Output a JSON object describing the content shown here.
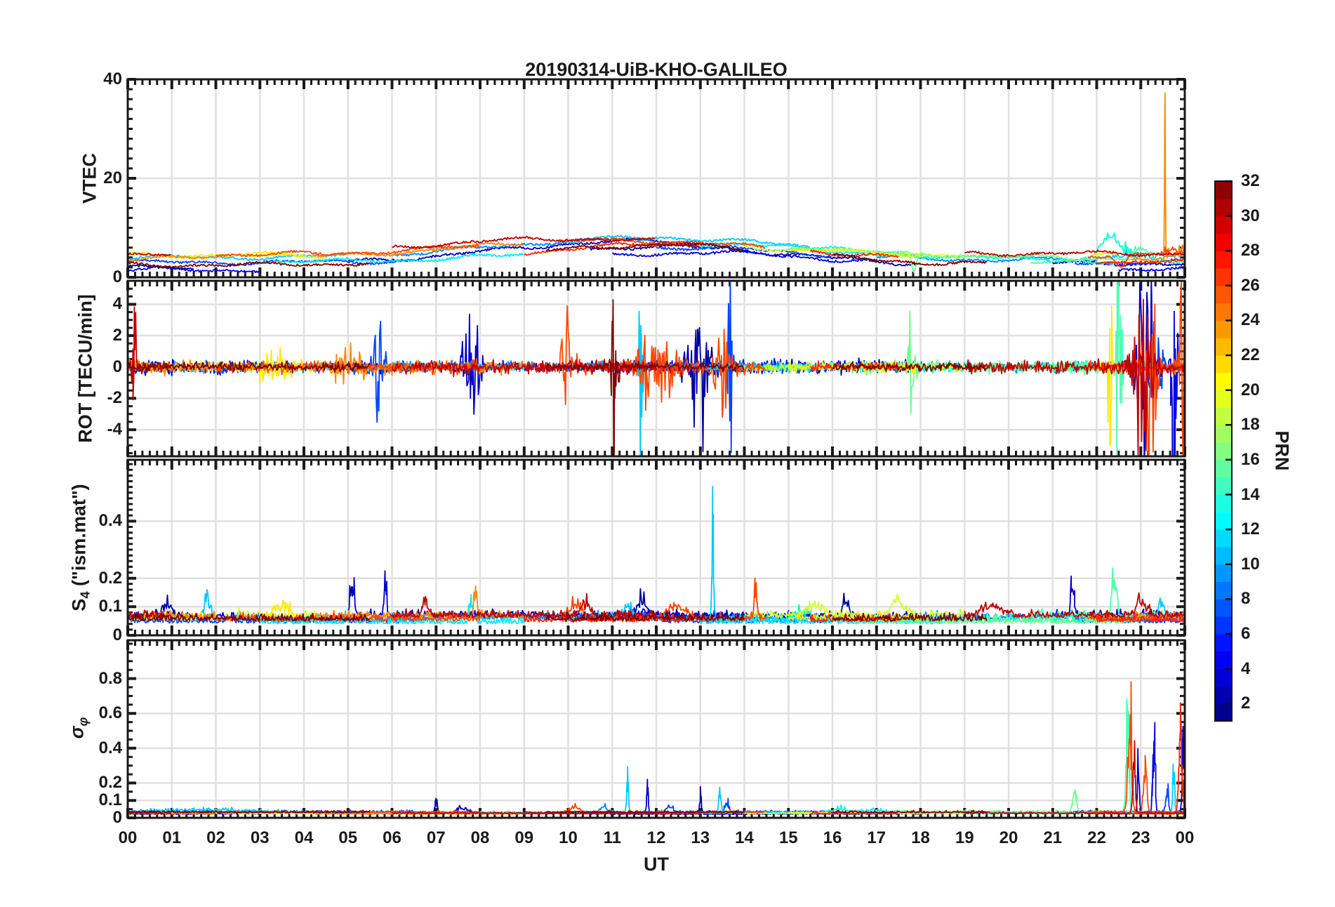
{
  "chart_data": {
    "type": "line",
    "title": "20190314-UiB-KHO-GALILEO",
    "xlabel": "UT",
    "x_range_hours": [
      0,
      24
    ],
    "x_tick_labels": [
      "00",
      "01",
      "02",
      "03",
      "04",
      "05",
      "06",
      "07",
      "08",
      "09",
      "10",
      "11",
      "12",
      "13",
      "14",
      "15",
      "16",
      "17",
      "18",
      "19",
      "20",
      "21",
      "22",
      "23",
      "00"
    ],
    "x_minor_step_hours": 0.166667,
    "grid": true,
    "axis_color": "#1a1a1a",
    "grid_color": "#e0e0e0",
    "colorbar": {
      "label": "PRN",
      "min": 1,
      "max": 32,
      "ticks": [
        2,
        4,
        6,
        8,
        10,
        12,
        14,
        16,
        18,
        20,
        22,
        24,
        26,
        28,
        30,
        32
      ],
      "colormap": "jet"
    },
    "panels": [
      {
        "id": "vtec",
        "ylabel": "VTEC",
        "kind": "vtec",
        "ylim": [
          0,
          40
        ],
        "yticks": [
          0,
          20,
          40
        ],
        "ytick_labels": [
          "0",
          "20",
          "40"
        ],
        "minor_step": 2,
        "events": [
          {
            "prn": 24,
            "t": 23.55,
            "amp": 33,
            "w": 0.012
          },
          {
            "prn": 14,
            "t": 22.3,
            "amp": 4,
            "w": 0.3
          },
          {
            "prn": 15,
            "t": 23.0,
            "amp": 2.5,
            "w": 0.3
          },
          {
            "prn": 16,
            "t": 17.85,
            "amp": -4,
            "w": 0.07
          },
          {
            "prn": 26,
            "t": 22.55,
            "amp": -2.5,
            "w": 0.15
          },
          {
            "prn": 14,
            "t": 22.5,
            "amp": 1.2,
            "w": 0.6,
            "noise": 1
          },
          {
            "prn": 15,
            "t": 23.2,
            "amp": 1.0,
            "w": 0.5,
            "noise": 1
          },
          {
            "prn": 11,
            "t": 23.0,
            "amp": 0.8,
            "w": 0.8,
            "noise": 1
          },
          {
            "prn": 24,
            "t": 23.8,
            "amp": 1.5,
            "w": 0.3,
            "noise": 1
          },
          {
            "prn": 26,
            "t": 23.8,
            "amp": 1.2,
            "w": 0.4,
            "noise": 1
          }
        ]
      },
      {
        "id": "rot",
        "ylabel": "ROT [TECU/min]",
        "kind": "noise",
        "ylim": [
          -5.7,
          5.5
        ],
        "yticks": [
          -4,
          -2,
          0,
          2,
          4
        ],
        "ytick_labels": [
          "-4",
          "-2",
          "0",
          "2",
          "4"
        ],
        "minor_step": 0.5,
        "base_sigma": 0.2,
        "events": [
          {
            "prn": 30,
            "t": 0.15,
            "amp": 2.2,
            "w": 0.06
          },
          {
            "prn": 21,
            "t": 3.3,
            "amp": 0.9,
            "w": 0.35
          },
          {
            "prn": 24,
            "t": 5.0,
            "amp": 0.8,
            "w": 0.3
          },
          {
            "prn": 7,
            "t": 5.7,
            "amp": 2.2,
            "w": 0.15
          },
          {
            "prn": 7,
            "t": 7.35,
            "amp": 2.6,
            "w": 0.3
          },
          {
            "prn": 3,
            "t": 7.8,
            "amp": 2.2,
            "w": 0.18
          },
          {
            "prn": 26,
            "t": 9.95,
            "amp": 1.8,
            "w": 0.2
          },
          {
            "prn": 32,
            "t": 11.05,
            "amp": 5.0,
            "w": 0.07
          },
          {
            "prn": 11,
            "t": 11.65,
            "amp": 5.5,
            "w": 0.04
          },
          {
            "prn": 26,
            "t": 12.0,
            "amp": 2.0,
            "w": 0.4
          },
          {
            "prn": 2,
            "t": 12.95,
            "amp": 2.8,
            "w": 0.25
          },
          {
            "prn": 26,
            "t": 13.5,
            "amp": 2.6,
            "w": 0.18
          },
          {
            "prn": 7,
            "t": 13.67,
            "amp": 4.2,
            "w": 0.05
          },
          {
            "prn": 30,
            "t": 13.75,
            "amp": 4.2,
            "w": 0.12
          },
          {
            "prn": 16,
            "t": 17.8,
            "amp": 2.0,
            "w": 0.08
          },
          {
            "prn": 21,
            "t": 22.3,
            "amp": 5.5,
            "w": 0.04
          },
          {
            "prn": 15,
            "t": 22.5,
            "amp": 5.0,
            "w": 0.07
          },
          {
            "prn": 30,
            "t": 23.05,
            "amp": 5.0,
            "w": 0.2
          },
          {
            "prn": 26,
            "t": 23.2,
            "amp": 4.5,
            "w": 0.15
          },
          {
            "prn": 3,
            "t": 23.1,
            "amp": 4.0,
            "w": 0.2
          },
          {
            "prn": 7,
            "t": 23.35,
            "amp": 3.5,
            "w": 0.12
          },
          {
            "prn": 4,
            "t": 23.75,
            "amp": 5.0,
            "w": 0.07
          },
          {
            "prn": 26,
            "t": 23.95,
            "amp": 3.5,
            "w": 0.1
          }
        ]
      },
      {
        "id": "s4",
        "ylabel_parts": {
          "pre": "S",
          "sub": "4",
          "post": " (\"ism.mat\")"
        },
        "kind": "positive",
        "ylim": [
          0,
          0.615
        ],
        "yticks": [
          0,
          0.1,
          0.2,
          0.4
        ],
        "ytick_labels": [
          "0",
          "0.1",
          "0.2",
          "0.4"
        ],
        "minor_step": 0.02,
        "base": 0.05,
        "events": [
          {
            "prn": 2,
            "t": 0.9,
            "amp": 0.1,
            "w": 0.15
          },
          {
            "prn": 11,
            "t": 1.8,
            "amp": 0.16,
            "w": 0.1
          },
          {
            "prn": 30,
            "t": 3.1,
            "amp": 0.12,
            "w": 0.12
          },
          {
            "prn": 21,
            "t": 3.5,
            "amp": 0.09,
            "w": 0.25
          },
          {
            "prn": 3,
            "t": 5.1,
            "amp": 0.2,
            "w": 0.07
          },
          {
            "prn": 3,
            "t": 5.85,
            "amp": 0.27,
            "w": 0.04
          },
          {
            "prn": 30,
            "t": 6.75,
            "amp": 0.14,
            "w": 0.07
          },
          {
            "prn": 24,
            "t": 7.9,
            "amp": 0.2,
            "w": 0.05
          },
          {
            "prn": 12,
            "t": 7.8,
            "amp": 0.16,
            "w": 0.06
          },
          {
            "prn": 21,
            "t": 9.0,
            "amp": 0.06,
            "w": 0.3
          },
          {
            "prn": 26,
            "t": 10.15,
            "amp": 0.11,
            "w": 0.2
          },
          {
            "prn": 30,
            "t": 10.4,
            "amp": 0.09,
            "w": 0.15
          },
          {
            "prn": 11,
            "t": 11.35,
            "amp": 0.12,
            "w": 0.1
          },
          {
            "prn": 2,
            "t": 11.65,
            "amp": 0.11,
            "w": 0.2
          },
          {
            "prn": 26,
            "t": 12.45,
            "amp": 0.09,
            "w": 0.3
          },
          {
            "prn": 11,
            "t": 13.28,
            "amp": 0.56,
            "w": 0.03
          },
          {
            "prn": 26,
            "t": 14.25,
            "amp": 0.24,
            "w": 0.04
          },
          {
            "prn": 14,
            "t": 15.35,
            "amp": 0.06,
            "w": 0.3
          },
          {
            "prn": 19,
            "t": 15.65,
            "amp": 0.07,
            "w": 0.25
          },
          {
            "prn": 2,
            "t": 16.3,
            "amp": 0.14,
            "w": 0.08
          },
          {
            "prn": 19,
            "t": 17.5,
            "amp": 0.12,
            "w": 0.2
          },
          {
            "prn": 30,
            "t": 17.95,
            "amp": 0.11,
            "w": 0.12
          },
          {
            "prn": 30,
            "t": 19.6,
            "amp": 0.08,
            "w": 0.3
          },
          {
            "prn": 3,
            "t": 21.45,
            "amp": 0.27,
            "w": 0.05
          },
          {
            "prn": 15,
            "t": 22.4,
            "amp": 0.26,
            "w": 0.08
          },
          {
            "prn": 30,
            "t": 23.0,
            "amp": 0.09,
            "w": 0.2
          },
          {
            "prn": 11,
            "t": 23.45,
            "amp": 0.12,
            "w": 0.1
          }
        ]
      },
      {
        "id": "sigma_phi",
        "ylabel_parts": {
          "pre": "σ",
          "sub": "φ",
          "post": ""
        },
        "kind": "positive",
        "ylim": [
          0,
          1.02
        ],
        "yticks": [
          0,
          0.1,
          0.2,
          0.4,
          0.6,
          0.8
        ],
        "ytick_labels": [
          "0",
          "0.1",
          "0.2",
          "0.4",
          "0.6",
          "0.8"
        ],
        "minor_step": 0.05,
        "base": 0.024,
        "events": [
          {
            "prn": 11,
            "t": 1.7,
            "amp": 0.035,
            "w": 1.5
          },
          {
            "prn": 3,
            "t": 7.0,
            "amp": 0.14,
            "w": 0.04
          },
          {
            "prn": 3,
            "t": 7.6,
            "amp": 0.07,
            "w": 0.15
          },
          {
            "prn": 26,
            "t": 10.15,
            "amp": 0.07,
            "w": 0.15
          },
          {
            "prn": 9,
            "t": 10.8,
            "amp": 0.09,
            "w": 0.1
          },
          {
            "prn": 11,
            "t": 11.35,
            "amp": 0.4,
            "w": 0.03
          },
          {
            "prn": 3,
            "t": 11.8,
            "amp": 0.33,
            "w": 0.025
          },
          {
            "prn": 7,
            "t": 12.3,
            "amp": 0.07,
            "w": 0.1
          },
          {
            "prn": 2,
            "t": 13.0,
            "amp": 0.21,
            "w": 0.03
          },
          {
            "prn": 11,
            "t": 13.45,
            "amp": 0.23,
            "w": 0.04
          },
          {
            "prn": 7,
            "t": 13.6,
            "amp": 0.11,
            "w": 0.06
          },
          {
            "prn": 14,
            "t": 16.2,
            "amp": 0.05,
            "w": 0.3
          },
          {
            "prn": 12,
            "t": 16.9,
            "amp": 0.04,
            "w": 0.4
          },
          {
            "prn": 16,
            "t": 21.5,
            "amp": 0.24,
            "w": 0.06
          },
          {
            "prn": 15,
            "t": 22.7,
            "amp": 1.0,
            "w": 0.05
          },
          {
            "prn": 26,
            "t": 22.75,
            "amp": 1.0,
            "w": 0.06
          },
          {
            "prn": 30,
            "t": 22.85,
            "amp": 0.6,
            "w": 0.04
          },
          {
            "prn": 3,
            "t": 22.95,
            "amp": 0.55,
            "w": 0.03
          },
          {
            "prn": 26,
            "t": 23.1,
            "amp": 0.65,
            "w": 0.05
          },
          {
            "prn": 4,
            "t": 23.3,
            "amp": 0.8,
            "w": 0.04
          },
          {
            "prn": 7,
            "t": 23.6,
            "amp": 0.3,
            "w": 0.04
          },
          {
            "prn": 11,
            "t": 23.75,
            "amp": 0.45,
            "w": 0.03
          },
          {
            "prn": 27,
            "t": 23.9,
            "amp": 0.9,
            "w": 0.05
          },
          {
            "prn": 4,
            "t": 23.98,
            "amp": 1.0,
            "w": 0.04
          }
        ]
      }
    ],
    "series": [
      {
        "prn": 2,
        "color": "#0000A0",
        "segments": [
          [
            0,
            1.5
          ],
          [
            10.5,
            18
          ]
        ],
        "vtec": {
          "base": 2.2,
          "hump": 4.0,
          "center": 12
        }
      },
      {
        "prn": 3,
        "color": "#0000C1",
        "segments": [
          [
            5,
            13
          ],
          [
            21,
            24
          ]
        ],
        "vtec": {
          "base": 2.8,
          "hump": 4.5,
          "center": 11.5
        }
      },
      {
        "prn": 4,
        "color": "#0000E2",
        "segments": [
          [
            0,
            3
          ],
          [
            11,
            17
          ],
          [
            22.5,
            24
          ]
        ],
        "vtec": {
          "base": 1.5,
          "hump": 3.5,
          "center": 13
        }
      },
      {
        "prn": 7,
        "color": "#0046FF",
        "segments": [
          [
            0,
            6.5
          ],
          [
            12,
            16
          ],
          [
            21.5,
            24
          ]
        ],
        "vtec": {
          "base": 3.0,
          "hump": 3.0,
          "center": 12.5
        }
      },
      {
        "prn": 9,
        "color": "#0088FF",
        "segments": [
          [
            6,
            12
          ],
          [
            17,
            22
          ]
        ],
        "vtec": {
          "base": 3.5,
          "hump": 4.0,
          "center": 11
        }
      },
      {
        "prn": 11,
        "color": "#00C9FF",
        "segments": [
          [
            0,
            5
          ],
          [
            10,
            15.5
          ],
          [
            22,
            24
          ]
        ],
        "vtec": {
          "base": 4.0,
          "hump": 4.0,
          "center": 12
        }
      },
      {
        "prn": 12,
        "color": "#00EAFF",
        "segments": [
          [
            3,
            9
          ],
          [
            13,
            18.5
          ]
        ],
        "vtec": {
          "base": 3.2,
          "hump": 3.5,
          "center": 13
        }
      },
      {
        "prn": 14,
        "color": "#00FFD2",
        "segments": [
          [
            15,
            23
          ]
        ],
        "vtec": {
          "base": 3.5,
          "hump": 3.0,
          "center": 13.5
        }
      },
      {
        "prn": 15,
        "color": "#4EFFB1",
        "segments": [
          [
            20.5,
            24
          ]
        ],
        "vtec": {
          "base": 3.0,
          "hump": 0.0,
          "center": 12
        }
      },
      {
        "prn": 16,
        "color": "#6FFF90",
        "segments": [
          [
            16.5,
            22.8
          ]
        ],
        "vtec": {
          "base": 3.8,
          "hump": 2.0,
          "center": 14
        }
      },
      {
        "prn": 19,
        "color": "#D2FF2D",
        "segments": [
          [
            2.5,
            4.5
          ],
          [
            14,
            19
          ]
        ],
        "vtec": {
          "base": 4.2,
          "hump": 2.5,
          "center": 12
        }
      },
      {
        "prn": 21,
        "color": "#FFEA00",
        "segments": [
          [
            0,
            4
          ],
          [
            15,
            18
          ],
          [
            21.9,
            22.5
          ]
        ],
        "vtec": {
          "base": 4.5,
          "hump": 2.0,
          "center": 12
        }
      },
      {
        "prn": 24,
        "color": "#FF8800",
        "segments": [
          [
            0,
            2
          ],
          [
            4.2,
            9
          ],
          [
            22.8,
            24
          ]
        ],
        "vtec": {
          "base": 3.8,
          "hump": 3.5,
          "center": 10.5
        }
      },
      {
        "prn": 26,
        "color": "#FF4600",
        "segments": [
          [
            2,
            8
          ],
          [
            9.8,
            14.5
          ],
          [
            21.8,
            24
          ]
        ],
        "vtec": {
          "base": 4.5,
          "hump": 3.0,
          "center": 11
        }
      },
      {
        "prn": 27,
        "color": "#FF2500",
        "segments": [
          [
            9,
            13
          ],
          [
            15.5,
            17.5
          ],
          [
            22,
            24
          ]
        ],
        "vtec": {
          "base": 3.2,
          "hump": 3.5,
          "center": 12.5
        }
      },
      {
        "prn": 30,
        "color": "#C10000",
        "segments": [
          [
            0,
            1
          ],
          [
            6,
            12
          ],
          [
            19,
            24
          ]
        ],
        "vtec": {
          "base": 4.8,
          "hump": 3.0,
          "center": 10
        }
      },
      {
        "prn": 32,
        "color": "#800000",
        "segments": [
          [
            0,
            5.5
          ],
          [
            9.5,
            14
          ],
          [
            16,
            19.5
          ]
        ],
        "vtec": {
          "base": 2.5,
          "hump": 4.0,
          "center": 12
        }
      }
    ]
  }
}
